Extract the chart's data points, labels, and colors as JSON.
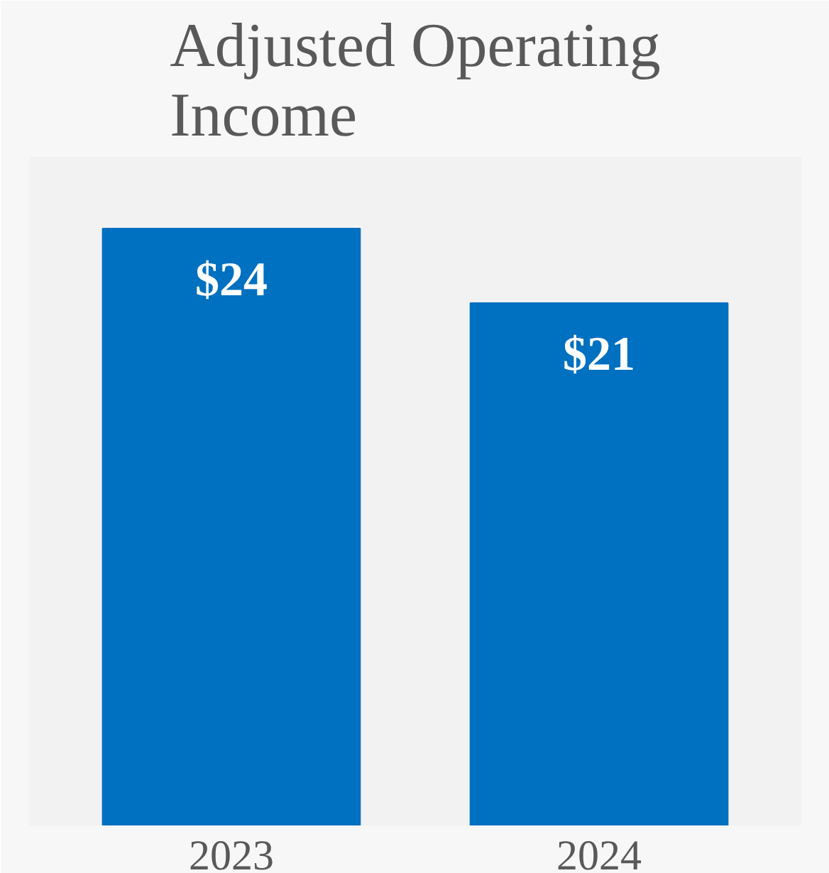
{
  "chart_data": {
    "type": "bar",
    "title": "Adjusted Operating Income",
    "categories": [
      "2023",
      "2024"
    ],
    "values": [
      24,
      21
    ],
    "value_labels": [
      "$24",
      "$21"
    ],
    "color": "#0070c0"
  }
}
